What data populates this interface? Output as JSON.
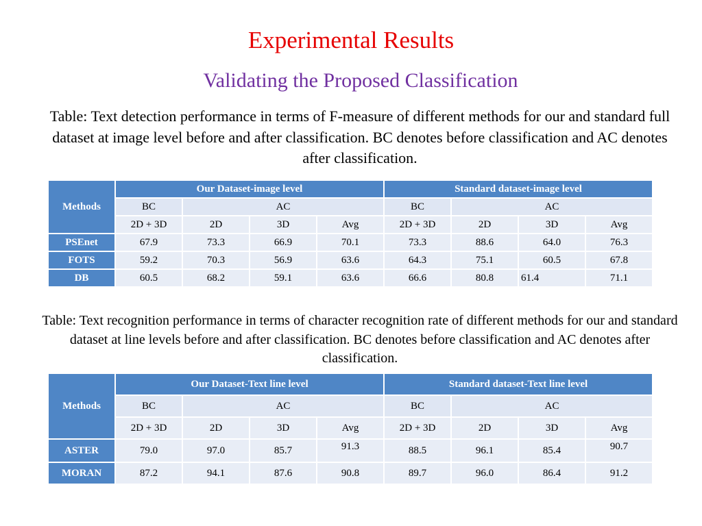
{
  "slide": {
    "title": "Experimental Results",
    "subtitle": "Validating the Proposed Classification",
    "caption1": "Table: Text detection performance in terms of F-measure of different methods for our and standard full dataset at image level before and after classification. BC denotes before classification and AC denotes after classification.",
    "caption2": "Table: Text recognition performance in terms of character recognition rate of different methods for our and standard dataset at line levels before and after classification. BC denotes before classification and AC denotes after classification."
  },
  "table1": {
    "methods_label": "Methods",
    "group_our": "Our Dataset-image level",
    "group_std": "Standard dataset-image level",
    "bc": "BC",
    "ac": "AC",
    "cols": [
      "2D + 3D",
      "2D",
      "3D",
      "Avg"
    ],
    "rows": [
      {
        "name": "PSEnet",
        "values": [
          "67.9",
          "73.3",
          "66.9",
          "70.1",
          "73.3",
          "88.6",
          "64.0",
          "76.3"
        ]
      },
      {
        "name": "FOTS",
        "values": [
          "59.2",
          "70.3",
          "56.9",
          "63.6",
          "64.3",
          "75.1",
          "60.5",
          "67.8"
        ]
      },
      {
        "name": "DB",
        "values": [
          "60.5",
          "68.2",
          "59.1",
          "63.6",
          "66.6",
          "80.8",
          "61.4",
          "71.1"
        ]
      }
    ]
  },
  "table2": {
    "methods_label": "Methods",
    "group_our": "Our Dataset-Text line level",
    "group_std": "Standard dataset-Text line level",
    "bc": "BC",
    "ac": "AC",
    "cols": [
      "2D + 3D",
      "2D",
      "3D",
      "Avg"
    ],
    "rows": [
      {
        "name": "ASTER",
        "values": [
          "79.0",
          "97.0",
          "85.7",
          "91.3",
          "88.5",
          "96.1",
          "85.4",
          "90.7"
        ]
      },
      {
        "name": "MORAN",
        "values": [
          "87.2",
          "94.1",
          "87.6",
          "90.8",
          "89.7",
          "96.0",
          "86.4",
          "91.2"
        ]
      }
    ]
  }
}
